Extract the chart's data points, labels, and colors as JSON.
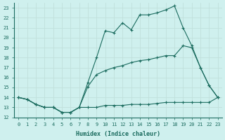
{
  "xlabel": "Humidex (Indice chaleur)",
  "bg_color": "#cff0ee",
  "grid_color": "#c0e0dc",
  "line_color": "#1a6b5e",
  "xlim": [
    -0.5,
    23.5
  ],
  "ylim": [
    12,
    23.5
  ],
  "xticks": [
    0,
    1,
    2,
    3,
    4,
    5,
    6,
    7,
    8,
    9,
    10,
    11,
    12,
    13,
    14,
    15,
    16,
    17,
    18,
    19,
    20,
    21,
    22,
    23
  ],
  "yticks": [
    12,
    13,
    14,
    15,
    16,
    17,
    18,
    19,
    20,
    21,
    22,
    23
  ],
  "line1_x": [
    0,
    1,
    2,
    3,
    4,
    5,
    6,
    7,
    8,
    9,
    10,
    11,
    12,
    13,
    14,
    15,
    16,
    17,
    18,
    19,
    20,
    21,
    22,
    23
  ],
  "line1_y": [
    14,
    13.8,
    13.3,
    13.0,
    13.0,
    12.5,
    12.5,
    13.0,
    13.0,
    13.0,
    13.2,
    13.2,
    13.2,
    13.3,
    13.3,
    13.3,
    13.4,
    13.5,
    13.5,
    13.5,
    13.5,
    13.5,
    13.5,
    14.0
  ],
  "line2_x": [
    0,
    1,
    2,
    3,
    4,
    5,
    6,
    7,
    8,
    9,
    10,
    11,
    12,
    13,
    14,
    15,
    16,
    17,
    18,
    19,
    20,
    21,
    22,
    23
  ],
  "line2_y": [
    14,
    13.8,
    13.3,
    13.0,
    13.0,
    12.5,
    12.5,
    13.0,
    15.1,
    16.3,
    16.7,
    17.0,
    17.2,
    17.5,
    17.7,
    17.8,
    18.0,
    18.2,
    18.2,
    19.2,
    19.0,
    17.0,
    15.2,
    14.0
  ],
  "line3_x": [
    0,
    1,
    2,
    3,
    4,
    5,
    6,
    7,
    8,
    9,
    10,
    11,
    12,
    13,
    14,
    15,
    16,
    17,
    18,
    19,
    20,
    21,
    22,
    23
  ],
  "line3_y": [
    14,
    13.8,
    13.3,
    13.0,
    13.0,
    12.5,
    12.5,
    13.0,
    15.5,
    18.0,
    20.7,
    20.5,
    21.5,
    20.8,
    22.3,
    22.3,
    22.5,
    22.8,
    23.2,
    21.0,
    19.2,
    17.0,
    15.2,
    14.0
  ],
  "marker": "+",
  "markersize": 3,
  "linewidth": 0.8,
  "font_family": "monospace",
  "tick_fontsize": 5,
  "xlabel_fontsize": 6
}
